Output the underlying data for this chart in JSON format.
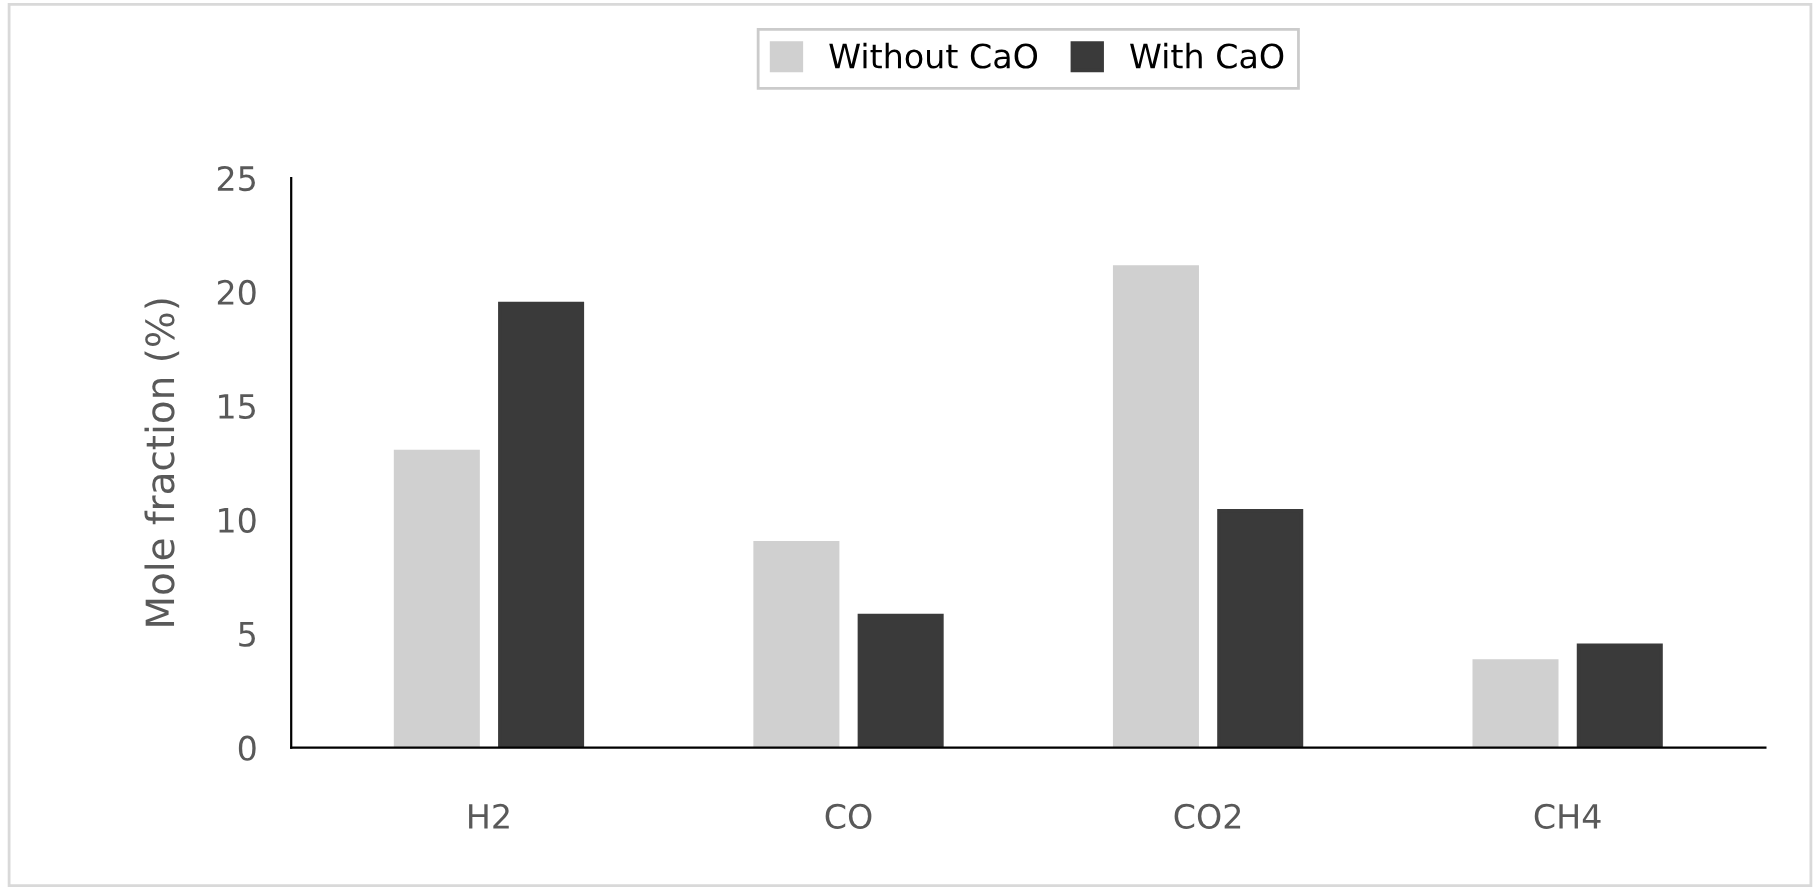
{
  "chart_data": {
    "type": "bar",
    "ylabel": "Mole fraction (%)",
    "categories": [
      "H2",
      "CO",
      "CO2",
      "CH4"
    ],
    "series": [
      {
        "name": "Without CaO",
        "color": "#d0d0d0",
        "values": [
          13,
          9,
          21.1,
          3.8
        ]
      },
      {
        "name": "With CaO",
        "color": "#3a3a3a",
        "values": [
          19.5,
          5.8,
          10.4,
          4.5
        ]
      }
    ],
    "ylim": [
      0,
      25
    ],
    "yticks": [
      0,
      5,
      10,
      15,
      20,
      25
    ],
    "grid": false,
    "legend": "top"
  }
}
